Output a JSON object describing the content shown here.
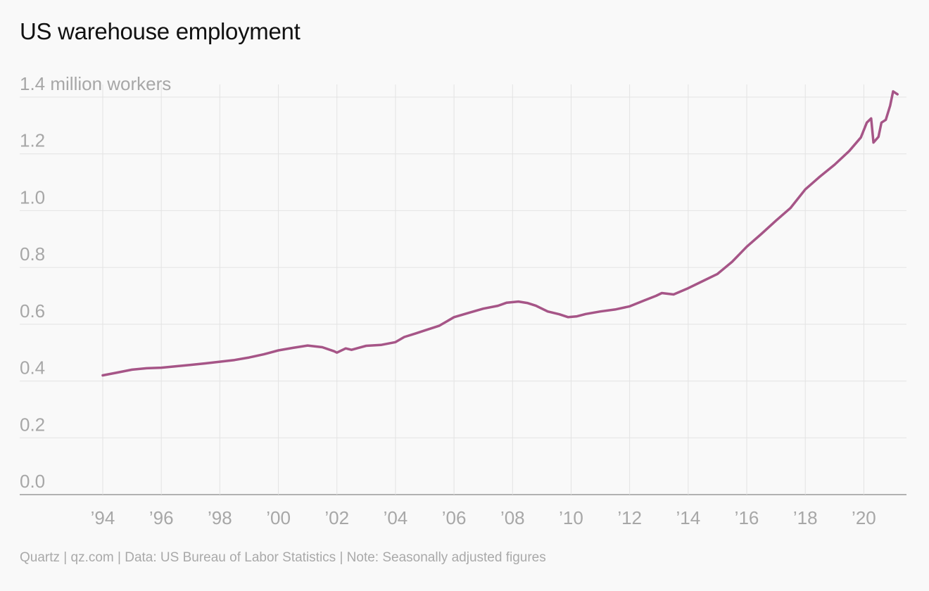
{
  "chart_data": {
    "type": "line",
    "title": "US warehouse employment",
    "ylabel": "million workers",
    "top_tick_label": "1.4 million workers",
    "ylim": [
      0,
      1.4
    ],
    "xlim": [
      1994,
      2021
    ],
    "y_ticks": [
      0,
      0.2,
      0.4,
      0.6,
      0.8,
      1.0,
      1.2,
      1.4
    ],
    "y_tick_labels": [
      "0.0",
      "0.2",
      "0.4",
      "0.6",
      "0.8",
      "1.0",
      "1.2",
      "1.4 million workers"
    ],
    "x_ticks": [
      1994,
      1996,
      1998,
      2000,
      2002,
      2004,
      2006,
      2008,
      2010,
      2012,
      2014,
      2016,
      2018,
      2020
    ],
    "x_tick_labels": [
      "’94",
      "’96",
      "’98",
      "’00",
      "’02",
      "’04",
      "’06",
      "’08",
      "’10",
      "’12",
      "’14",
      "’16",
      "’18",
      "’20"
    ],
    "grid": true,
    "line_color": "#a65587",
    "series": [
      {
        "values": [
          [
            1994.0,
            0.42
          ],
          [
            1994.5,
            0.43
          ],
          [
            1995.0,
            0.44
          ],
          [
            1995.5,
            0.445
          ],
          [
            1996.0,
            0.447
          ],
          [
            1996.5,
            0.452
          ],
          [
            1997.0,
            0.457
          ],
          [
            1997.5,
            0.462
          ],
          [
            1998.0,
            0.468
          ],
          [
            1998.5,
            0.474
          ],
          [
            1999.0,
            0.483
          ],
          [
            1999.5,
            0.494
          ],
          [
            2000.0,
            0.508
          ],
          [
            2000.5,
            0.517
          ],
          [
            2001.0,
            0.525
          ],
          [
            2001.5,
            0.519
          ],
          [
            2001.9,
            0.505
          ],
          [
            2002.0,
            0.5
          ],
          [
            2002.3,
            0.515
          ],
          [
            2002.5,
            0.51
          ],
          [
            2003.0,
            0.524
          ],
          [
            2003.5,
            0.527
          ],
          [
            2004.0,
            0.537
          ],
          [
            2004.3,
            0.555
          ],
          [
            2004.7,
            0.568
          ],
          [
            2005.0,
            0.578
          ],
          [
            2005.5,
            0.595
          ],
          [
            2006.0,
            0.625
          ],
          [
            2006.5,
            0.64
          ],
          [
            2007.0,
            0.655
          ],
          [
            2007.5,
            0.665
          ],
          [
            2007.8,
            0.676
          ],
          [
            2008.2,
            0.68
          ],
          [
            2008.5,
            0.675
          ],
          [
            2008.8,
            0.665
          ],
          [
            2009.2,
            0.645
          ],
          [
            2009.6,
            0.635
          ],
          [
            2009.9,
            0.625
          ],
          [
            2010.2,
            0.628
          ],
          [
            2010.5,
            0.636
          ],
          [
            2011.0,
            0.645
          ],
          [
            2011.5,
            0.652
          ],
          [
            2012.0,
            0.663
          ],
          [
            2012.5,
            0.684
          ],
          [
            2012.9,
            0.7
          ],
          [
            2013.1,
            0.71
          ],
          [
            2013.5,
            0.705
          ],
          [
            2014.0,
            0.727
          ],
          [
            2014.5,
            0.752
          ],
          [
            2015.0,
            0.777
          ],
          [
            2015.5,
            0.82
          ],
          [
            2016.0,
            0.873
          ],
          [
            2016.5,
            0.918
          ],
          [
            2017.0,
            0.965
          ],
          [
            2017.5,
            1.01
          ],
          [
            2018.0,
            1.075
          ],
          [
            2018.5,
            1.12
          ],
          [
            2019.0,
            1.162
          ],
          [
            2019.5,
            1.21
          ],
          [
            2019.9,
            1.258
          ],
          [
            2020.1,
            1.31
          ],
          [
            2020.25,
            1.325
          ],
          [
            2020.33,
            1.24
          ],
          [
            2020.5,
            1.26
          ],
          [
            2020.6,
            1.31
          ],
          [
            2020.75,
            1.32
          ],
          [
            2020.9,
            1.37
          ],
          [
            2021.0,
            1.42
          ],
          [
            2021.15,
            1.41
          ]
        ]
      }
    ]
  },
  "footer": "Quartz | qz.com | Data: US Bureau of Labor Statistics | Note: Seasonally adjusted figures"
}
